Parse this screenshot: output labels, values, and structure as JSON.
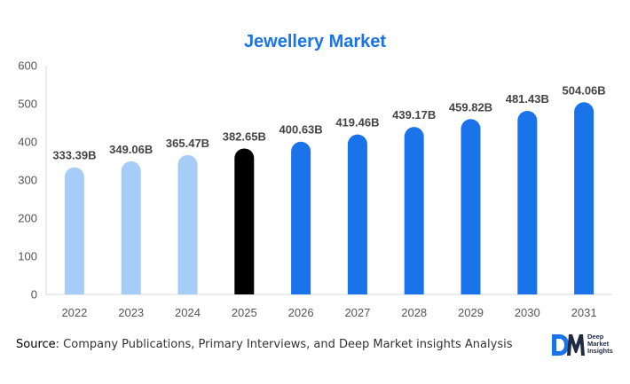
{
  "source": {
    "label": "Source",
    "text": ": Company Publications, Primary Interviews, and Deep Market insights Analysis"
  },
  "logo": {
    "mark": "DM",
    "lines": [
      "Deep",
      "Market",
      "Insights"
    ]
  },
  "colors": {
    "historical": "#a6cdf7",
    "current": "#000000",
    "forecast": "#1a73e8",
    "title": "#1a73e8"
  },
  "chart_data": {
    "type": "bar",
    "title": "Jewellery Market",
    "xlabel": "",
    "ylabel": "",
    "ylim": [
      0,
      600
    ],
    "yticks": [
      0,
      100,
      200,
      300,
      400,
      500,
      600
    ],
    "grid": false,
    "categories": [
      "2022",
      "2023",
      "2024",
      "2025",
      "2026",
      "2027",
      "2028",
      "2029",
      "2030",
      "2031"
    ],
    "values": [
      333.39,
      349.06,
      365.47,
      382.65,
      400.63,
      419.46,
      439.17,
      459.82,
      481.43,
      504.06
    ],
    "data_labels": [
      "333.39B",
      "349.06B",
      "365.47B",
      "382.65B",
      "400.63B",
      "419.46B",
      "439.17B",
      "459.82B",
      "481.43B",
      "504.06B"
    ],
    "bar_groups": [
      "historical",
      "historical",
      "historical",
      "current",
      "forecast",
      "forecast",
      "forecast",
      "forecast",
      "forecast",
      "forecast"
    ]
  }
}
